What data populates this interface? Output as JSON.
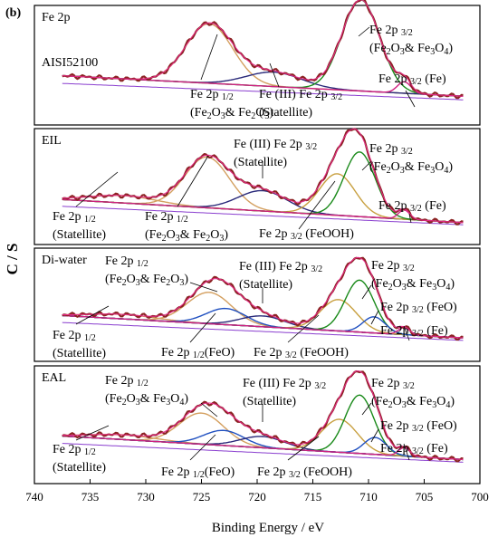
{
  "figure_label": "(b)",
  "chart_data": {
    "type": "line",
    "xlabel": "Binding Energy / eV",
    "ylabel": "C / S",
    "xlim": [
      740,
      700
    ],
    "x_ticks": [
      740,
      735,
      730,
      725,
      720,
      715,
      710,
      705,
      700
    ],
    "x_reversed": true,
    "grid": false,
    "colors": {
      "raw": "#8b2323",
      "envelope": "#e62a8a",
      "background": "#2c5fa0",
      "baseline_purple": "#8a3fcf",
      "peak_fe2o3_fe3o4": "#1a8a1a",
      "peak_satellite_iii": "#2a2a7a",
      "peak_feooh": "#c8a040",
      "peak_fe2p12": "#d4a060",
      "peak_fe0": "#d02080",
      "peak_feo": "#2050c0"
    },
    "panels": [
      {
        "name": "Fe 2p",
        "subtitle": "AISI52100",
        "annotations": [
          {
            "lines": [
              [
                "Fe 2p ",
                "1/2"
              ],
              [
                "(Fe",
                "2",
                "O",
                "3",
                "& Fe",
                "2",
                "O",
                "3",
                ")"
              ]
            ]
          },
          {
            "lines": [
              [
                "Fe (III) Fe 2p ",
                "3/2"
              ],
              [
                "(Statellite)"
              ]
            ]
          },
          {
            "lines": [
              [
                "Fe 2p ",
                "3/2"
              ],
              [
                "(Fe",
                "2",
                "O",
                "3",
                "& Fe",
                "3",
                "O",
                "4",
                ")"
              ]
            ]
          },
          {
            "lines": [
              [
                "Fe 2p ",
                "3/2",
                " (Fe)"
              ]
            ]
          }
        ]
      },
      {
        "name": "EIL",
        "annotations": [
          {
            "lines": [
              [
                "Fe (III) Fe 2p ",
                "3/2"
              ],
              [
                "(Statellite)"
              ]
            ]
          },
          {
            "lines": [
              [
                "Fe 2p ",
                "3/2"
              ],
              [
                "(Fe",
                "2",
                "O",
                "3",
                "& Fe",
                "3",
                "O",
                "4",
                ")"
              ]
            ]
          },
          {
            "lines": [
              [
                "Fe 2p ",
                "1/2"
              ],
              [
                "(Statellite)"
              ]
            ]
          },
          {
            "lines": [
              [
                "Fe 2p ",
                "1/2"
              ],
              [
                "(Fe",
                "2",
                "O",
                "3",
                "& Fe",
                "2",
                "O",
                "3",
                ")"
              ]
            ]
          },
          {
            "lines": [
              [
                "Fe 2p ",
                "3/2",
                " (FeOOH)"
              ]
            ]
          },
          {
            "lines": [
              [
                "Fe 2p ",
                "3/2",
                " (Fe)"
              ]
            ]
          }
        ]
      },
      {
        "name": "Di-water",
        "annotations": [
          {
            "lines": [
              [
                "Fe 2p ",
                "1/2"
              ],
              [
                "(Fe",
                "2",
                "O",
                "3",
                "& Fe",
                "2",
                "O",
                "3",
                ")"
              ]
            ]
          },
          {
            "lines": [
              [
                "Fe (III) Fe 2p ",
                "3/2"
              ],
              [
                "(Statellite)"
              ]
            ]
          },
          {
            "lines": [
              [
                "Fe 2p ",
                "3/2"
              ],
              [
                "(Fe",
                "2",
                "O",
                "3",
                "& Fe",
                "3",
                "O",
                "4",
                ")"
              ]
            ]
          },
          {
            "lines": [
              [
                "Fe 2p ",
                "3/2",
                " (FeO)"
              ]
            ]
          },
          {
            "lines": [
              [
                "Fe 2p ",
                "1/2"
              ],
              [
                "(Statellite)"
              ]
            ]
          },
          {
            "lines": [
              [
                "Fe 2p ",
                "1/2",
                "(FeO)"
              ]
            ]
          },
          {
            "lines": [
              [
                "Fe 2p ",
                "3/2",
                " (FeOOH)"
              ]
            ]
          },
          {
            "lines": [
              [
                "Fe 2p ",
                "3/2",
                " (Fe)"
              ]
            ]
          }
        ]
      },
      {
        "name": "EAL",
        "annotations": [
          {
            "lines": [
              [
                "Fe 2p ",
                "1/2"
              ],
              [
                "(Fe",
                "2",
                "O",
                "3",
                "& Fe",
                "3",
                "O",
                "4",
                ")"
              ]
            ]
          },
          {
            "lines": [
              [
                "Fe (III) Fe 2p ",
                "3/2"
              ],
              [
                "(Statellite)"
              ]
            ]
          },
          {
            "lines": [
              [
                "Fe 2p ",
                "3/2"
              ],
              [
                "(Fe",
                "2",
                "O",
                "3",
                "& Fe",
                "3",
                "O",
                "4",
                ")"
              ]
            ]
          },
          {
            "lines": [
              [
                "Fe 2p ",
                "3/2",
                " (FeO)"
              ]
            ]
          },
          {
            "lines": [
              [
                "Fe 2p ",
                "1/2"
              ],
              [
                "(Statellite)"
              ]
            ]
          },
          {
            "lines": [
              [
                "Fe 2p ",
                "1/2",
                "(FeO)"
              ]
            ]
          },
          {
            "lines": [
              [
                "Fe 2p ",
                "3/2",
                " (FeOOH)"
              ]
            ]
          },
          {
            "lines": [
              [
                "Fe 2p ",
                "3/2",
                " (Fe)"
              ]
            ]
          }
        ]
      }
    ]
  }
}
